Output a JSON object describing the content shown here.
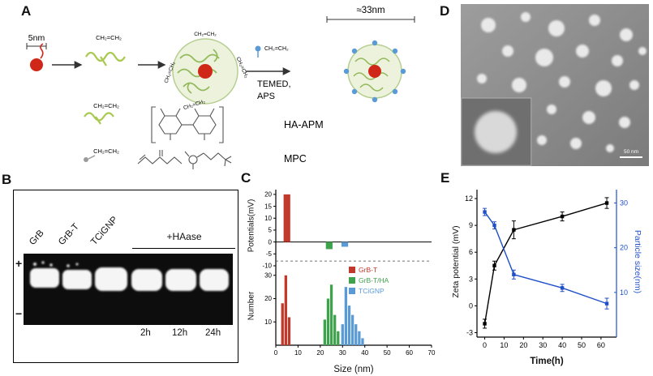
{
  "figure": {
    "panel_labels": {
      "a": "A",
      "b": "B",
      "c": "C",
      "d": "D",
      "e": "E"
    }
  },
  "panels": {
    "a": {
      "scale_small": "5nm",
      "scale_large": "≈33nm",
      "monomer": "CH₂=CH₂",
      "temed_line1": "TEMED,",
      "temed_line2": "APS",
      "polymer_label": "HA-APM",
      "monomer_label": "MPC"
    },
    "b": {
      "lanes": [
        "GrB",
        "GrB-T",
        "TCiGNP"
      ],
      "treatment": "+HAase",
      "plus": "+",
      "minus": "−",
      "timepoints": [
        "2h",
        "12h",
        "24h"
      ]
    },
    "d": {
      "scale_bar": "50 nm"
    }
  },
  "chart_data": [
    {
      "id": "panel-c",
      "type": "bar",
      "xlabel": "Size (nm)",
      "xlim": [
        0,
        70
      ],
      "xticks": [
        0,
        10,
        20,
        30,
        40,
        50,
        60,
        70
      ],
      "top": {
        "ylabel": "Potentials(mV)",
        "ylim": [
          -10,
          22
        ],
        "yticks": [
          20,
          15,
          10,
          5,
          0,
          -5,
          -10
        ],
        "dashed_line_y": -8,
        "bar_width_nm": 3,
        "bars": [
          {
            "series": "GrB-T",
            "size_nm": 5,
            "potential_mV": 20
          },
          {
            "series": "GrB-T/HA",
            "size_nm": 24,
            "potential_mV": -3
          },
          {
            "series": "TCiGNP",
            "size_nm": 31,
            "potential_mV": -2
          }
        ]
      },
      "bottom": {
        "ylabel": "Number",
        "ylim": [
          0,
          32
        ],
        "yticks": [
          10,
          20,
          30
        ],
        "bin_width_nm": 1.2,
        "series": [
          {
            "name": "GrB-T",
            "color": "#c0392b",
            "points": [
              [
                3,
                18
              ],
              [
                4.5,
                30
              ],
              [
                6,
                12
              ]
            ]
          },
          {
            "name": "GrB-T/HA",
            "color": "#3fa34d",
            "points": [
              [
                22,
                11
              ],
              [
                23.5,
                20
              ],
              [
                25,
                26
              ],
              [
                26.5,
                13
              ],
              [
                28,
                6
              ]
            ]
          },
          {
            "name": "TCiGNP",
            "color": "#5b9bd5",
            "points": [
              [
                30,
                9
              ],
              [
                31.5,
                25
              ],
              [
                33,
                17
              ],
              [
                34.5,
                13
              ],
              [
                36,
                9
              ],
              [
                37.5,
                6
              ],
              [
                39,
                3
              ]
            ]
          }
        ]
      },
      "legend": [
        {
          "label": "GrB-T",
          "color": "#c0392b"
        },
        {
          "label": "GrB-T/HA",
          "color": "#3fa34d"
        },
        {
          "label": "TCiGNP",
          "color": "#5b9bd5"
        }
      ]
    },
    {
      "id": "panel-e",
      "type": "line",
      "xlabel": "Time(h)",
      "xlim": [
        -4,
        68
      ],
      "xticks": [
        0,
        10,
        20,
        30,
        40,
        50,
        60
      ],
      "left": {
        "ylabel": "Zeta potential (mV)",
        "color": "#000000",
        "ylim": [
          -3.5,
          13
        ],
        "yticks": [
          -3,
          0,
          3,
          6,
          9,
          12
        ],
        "points": [
          [
            0,
            -2
          ],
          [
            5,
            4.5
          ],
          [
            15,
            8.5
          ],
          [
            40,
            10
          ],
          [
            63,
            11.5
          ]
        ],
        "errors": [
          0.5,
          0.5,
          1.0,
          0.5,
          0.6
        ]
      },
      "right": {
        "ylabel": "Particle size(nm)",
        "color": "#2050c8",
        "ylim": [
          0,
          33
        ],
        "yticks": [
          10,
          20,
          30
        ],
        "points": [
          [
            0,
            28
          ],
          [
            5,
            25
          ],
          [
            15,
            14
          ],
          [
            40,
            11
          ],
          [
            63,
            7.5
          ]
        ],
        "errors": [
          0.8,
          0.8,
          1.0,
          0.8,
          1.2
        ]
      }
    }
  ]
}
